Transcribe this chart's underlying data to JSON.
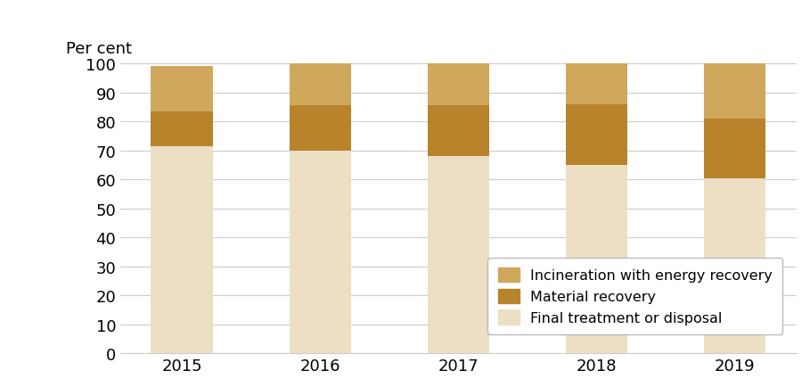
{
  "years": [
    "2015",
    "2016",
    "2017",
    "2018",
    "2019"
  ],
  "final_treatment": [
    71.5,
    70.0,
    65.0,
    63.0,
    59.0
  ],
  "material_recovery": [
    12.0,
    15.5,
    17.5,
    21.0,
    20.5
  ],
  "incineration": [
    15.5,
    14.5,
    14.5,
    14.0,
    19.0
  ],
  "other_bottom": [
    0.0,
    0.0,
    3.0,
    2.0,
    1.5
  ],
  "color_final": "#ecdfc4",
  "color_material": "#b8832a",
  "color_incineration": "#cfa85c",
  "color_other": "#ecdfc4",
  "ylabel": "Per cent",
  "ylim": [
    0,
    100
  ],
  "yticks": [
    0,
    10,
    20,
    30,
    40,
    50,
    60,
    70,
    80,
    90,
    100
  ],
  "legend_labels": [
    "Incineration with energy recovery",
    "Material recovery",
    "Final treatment or disposal"
  ],
  "bar_width": 0.45,
  "background_color": "#ffffff",
  "grid_color": "#cccccc"
}
